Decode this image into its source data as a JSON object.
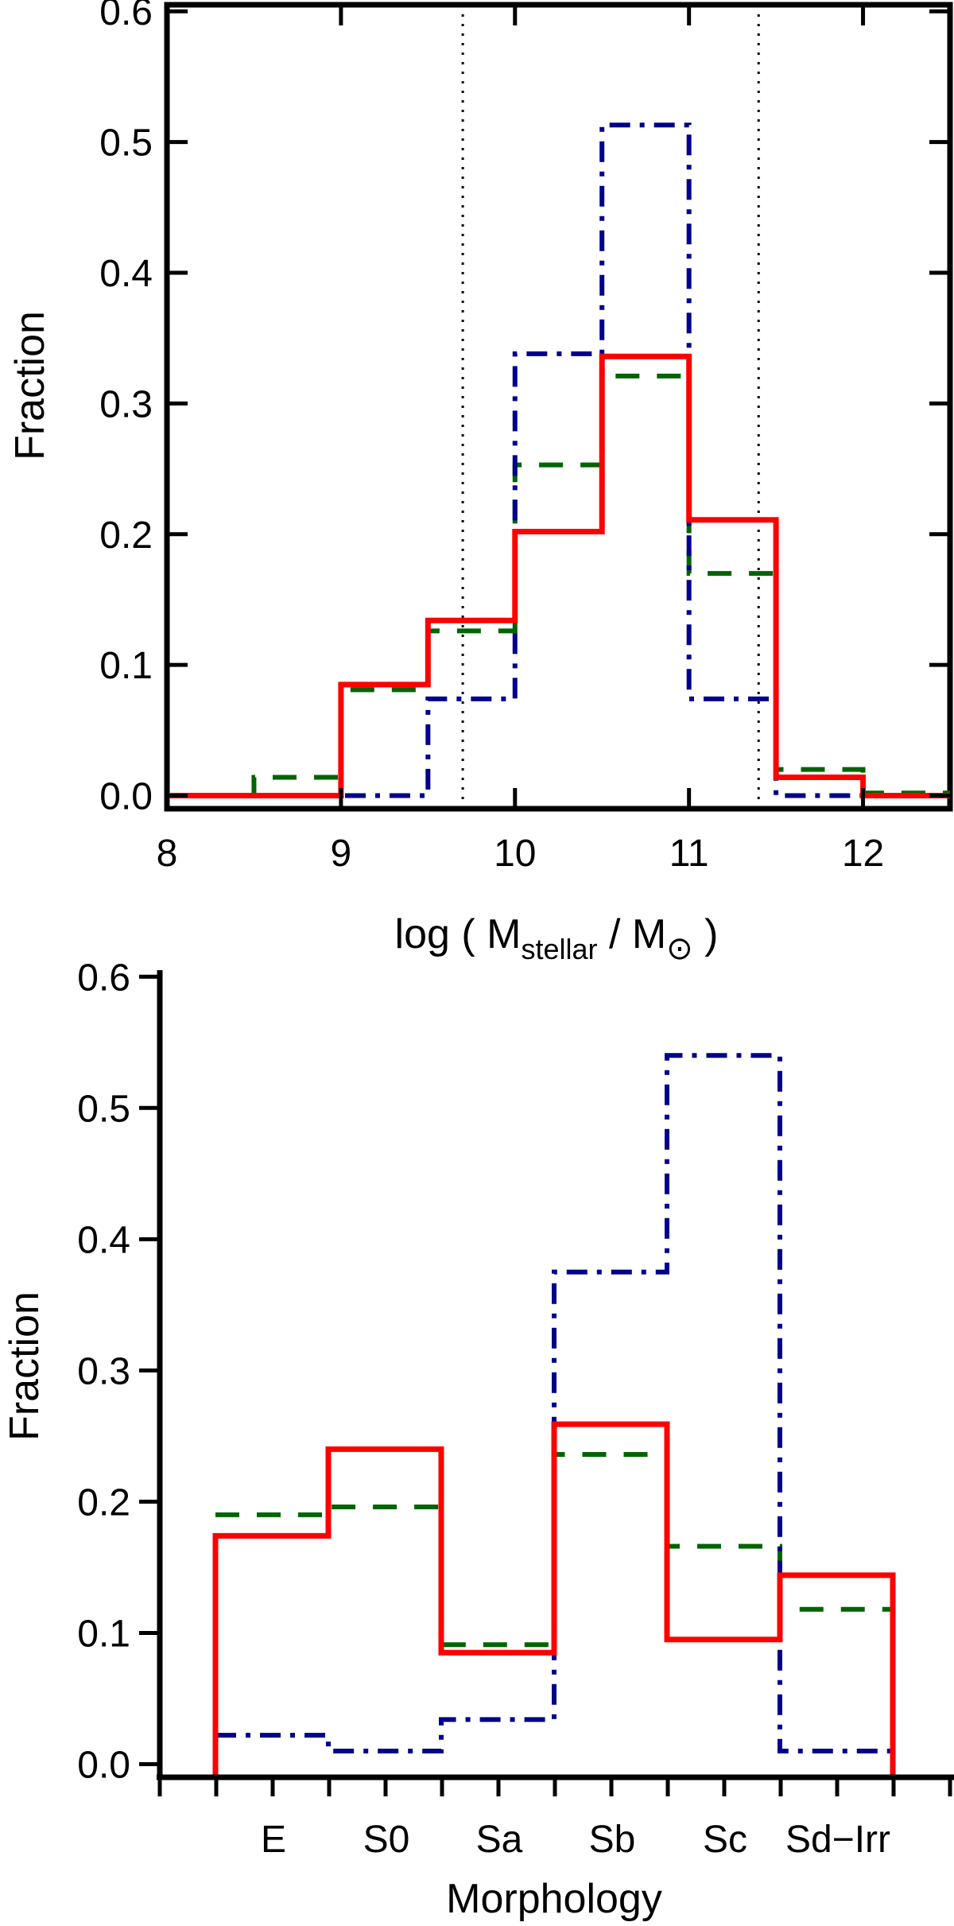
{
  "chart_data": [
    {
      "type": "histogram",
      "ylabel": "Fraction",
      "xlabel_parts": {
        "prefix": "log ( M",
        "sub1": "stellar",
        "middle": " / M",
        "sub2": "⊙",
        "suffix": " )"
      },
      "xlim": [
        8,
        12.5
      ],
      "ylim": [
        -0.01,
        0.605
      ],
      "xticks": [
        8,
        9,
        10,
        11,
        12
      ],
      "xtick_labels": [
        "8",
        "9",
        "10",
        "11",
        "12"
      ],
      "yticks": [
        0.0,
        0.1,
        0.2,
        0.3,
        0.4,
        0.5,
        0.6
      ],
      "ytick_labels": [
        "0.0",
        "0.1",
        "0.2",
        "0.3",
        "0.4",
        "0.5",
        "0.6"
      ],
      "vertical_lines": [
        9.7,
        11.4
      ],
      "bin_edges": [
        8,
        8.5,
        9,
        9.5,
        10,
        10.5,
        11,
        11.5,
        12,
        12.5
      ],
      "series": [
        {
          "name": "red-solid",
          "color": "#ff0000",
          "style": "solid",
          "values": [
            0.0,
            0.0,
            0.085,
            0.134,
            0.202,
            0.336,
            0.211,
            0.014,
            0.0
          ]
        },
        {
          "name": "green-dashed",
          "color": "#006400",
          "style": "dashed",
          "values": [
            0.0,
            0.014,
            0.081,
            0.126,
            0.253,
            0.321,
            0.17,
            0.02,
            0.002
          ]
        },
        {
          "name": "blue-dashdot",
          "color": "#00008b",
          "style": "dashdot",
          "values": [
            0.0,
            0.0,
            0.0,
            0.074,
            0.338,
            0.513,
            0.074,
            0.0,
            0.0
          ]
        }
      ]
    },
    {
      "type": "histogram",
      "ylabel": "Fraction",
      "xlabel": "Morphology",
      "ylim": [
        -0.01,
        0.605
      ],
      "yticks": [
        0.0,
        0.1,
        0.2,
        0.3,
        0.4,
        0.5,
        0.6
      ],
      "ytick_labels": [
        "0.0",
        "0.1",
        "0.2",
        "0.3",
        "0.4",
        "0.5",
        "0.6"
      ],
      "categories": [
        "E",
        "S0",
        "Sa",
        "Sb",
        "Sc",
        "Sd−Irr"
      ],
      "series": [
        {
          "name": "red-solid",
          "color": "#ff0000",
          "style": "solid",
          "values": [
            0.174,
            0.24,
            0.085,
            0.259,
            0.095,
            0.144
          ]
        },
        {
          "name": "green-dashed",
          "color": "#006400",
          "style": "dashed",
          "values": [
            0.19,
            0.196,
            0.091,
            0.236,
            0.166,
            0.118
          ]
        },
        {
          "name": "blue-dashdot",
          "color": "#00008b",
          "style": "dashdot",
          "values": [
            0.022,
            0.01,
            0.034,
            0.375,
            0.54,
            0.01
          ]
        }
      ]
    }
  ]
}
